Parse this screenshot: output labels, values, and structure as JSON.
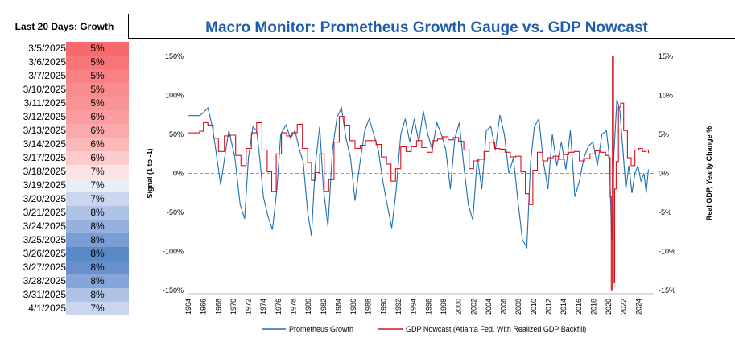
{
  "panel": {
    "header": "Last 20 Days: Growth",
    "rows": [
      {
        "date": "3/5/2025",
        "value": "5%",
        "color": "#f8696b"
      },
      {
        "date": "3/6/2025",
        "value": "5%",
        "color": "#f87577"
      },
      {
        "date": "3/7/2025",
        "value": "5%",
        "color": "#f98183"
      },
      {
        "date": "3/10/2025",
        "value": "5%",
        "color": "#f98c8e"
      },
      {
        "date": "3/11/2025",
        "value": "5%",
        "color": "#f99496"
      },
      {
        "date": "3/12/2025",
        "value": "6%",
        "color": "#fa9ea0"
      },
      {
        "date": "3/13/2025",
        "value": "6%",
        "color": "#fbaaab"
      },
      {
        "date": "3/14/2025",
        "value": "6%",
        "color": "#fcb9ba"
      },
      {
        "date": "3/17/2025",
        "value": "6%",
        "color": "#fccbcc"
      },
      {
        "date": "3/18/2025",
        "value": "7%",
        "color": "#fde3e4"
      },
      {
        "date": "3/19/2025",
        "value": "7%",
        "color": "#e9eef8"
      },
      {
        "date": "3/20/2025",
        "value": "7%",
        "color": "#c9d6ee"
      },
      {
        "date": "3/21/2025",
        "value": "8%",
        "color": "#aec3e6"
      },
      {
        "date": "3/24/2025",
        "value": "8%",
        "color": "#96b1de"
      },
      {
        "date": "3/25/2025",
        "value": "8%",
        "color": "#7a9dd5"
      },
      {
        "date": "3/26/2025",
        "value": "8%",
        "color": "#5a8ac6"
      },
      {
        "date": "3/27/2025",
        "value": "8%",
        "color": "#6891cb"
      },
      {
        "date": "3/28/2025",
        "value": "8%",
        "color": "#86a6d9"
      },
      {
        "date": "3/31/2025",
        "value": "8%",
        "color": "#aec3e6"
      },
      {
        "date": "4/1/2025",
        "value": "7%",
        "color": "#c9d6ee"
      }
    ]
  },
  "chart_data": {
    "type": "line",
    "title": "Macro Monitor: Prometheus Growth Gauge vs. GDP Nowcast",
    "ylabel_left": "Signal (1 to -1)",
    "ylabel_right": "Real GDP, Yearly Change %",
    "ylim_left": [
      -1.5,
      1.5
    ],
    "ylim_right": [
      -15,
      15
    ],
    "yticks_left": [
      "150%",
      "100%",
      "50%",
      "0%",
      "-50%",
      "-100%",
      "-150%"
    ],
    "yticks_right": [
      "15%",
      "10%",
      "5%",
      "0%",
      "-5%",
      "-10%",
      "-15%"
    ],
    "xlim": [
      1964,
      2026
    ],
    "xticks": [
      "1964",
      "1966",
      "1968",
      "1970",
      "1972",
      "1974",
      "1976",
      "1978",
      "1980",
      "1982",
      "1984",
      "1986",
      "1988",
      "1990",
      "1992",
      "1994",
      "1996",
      "1998",
      "2000",
      "2002",
      "2004",
      "2006",
      "2008",
      "2010",
      "2012",
      "2014",
      "2016",
      "2018",
      "2020",
      "2022",
      "2024"
    ],
    "zero_line": "dashed",
    "series": [
      {
        "name": "Prometheus Growth",
        "axis": "left",
        "color": "#1f6fb2",
        "x": [
          1964,
          1965.5,
          1966,
          1966.6,
          1967.2,
          1967.8,
          1968.3,
          1968.9,
          1969.4,
          1970.2,
          1970.9,
          1971.5,
          1972,
          1972.6,
          1973.1,
          1973.5,
          1974,
          1974.6,
          1975.2,
          1975.8,
          1976.3,
          1977,
          1977.6,
          1978.2,
          1978.8,
          1979.3,
          1979.9,
          1980.4,
          1980.9,
          1981.5,
          1982,
          1982.6,
          1983.2,
          1983.8,
          1984.4,
          1985,
          1985.6,
          1986.2,
          1986.8,
          1987.5,
          1988.1,
          1988.7,
          1989.3,
          1989.9,
          1990.5,
          1991.1,
          1991.7,
          1992.3,
          1992.9,
          1993.5,
          1994.1,
          1994.7,
          1995.3,
          1995.9,
          1996.5,
          1997.1,
          1997.7,
          1998.3,
          1998.9,
          1999.5,
          2000.1,
          2000.7,
          2001.3,
          2001.9,
          2002.5,
          2003.1,
          2003.7,
          2004.3,
          2004.9,
          2005.5,
          2006.1,
          2006.7,
          2007.3,
          2007.9,
          2008.5,
          2009.1,
          2009.6,
          2010.1,
          2010.7,
          2011.3,
          2011.9,
          2012.5,
          2013.1,
          2013.7,
          2014.3,
          2014.9,
          2015.5,
          2016.1,
          2016.7,
          2017.3,
          2017.9,
          2018.5,
          2019.1,
          2019.7,
          2020.1,
          2020.4,
          2020.7,
          2021.1,
          2021.5,
          2021.9,
          2022.3,
          2022.7,
          2023.1,
          2023.5,
          2023.9,
          2024.3,
          2024.7,
          2025.0,
          2025.3
        ],
        "y": [
          0.74,
          0.74,
          0.78,
          0.84,
          0.6,
          0.2,
          -0.15,
          0.25,
          0.55,
          0.2,
          -0.4,
          -0.58,
          0.2,
          0.6,
          0.55,
          0.2,
          -0.3,
          -0.55,
          -0.72,
          -0.2,
          0.5,
          0.62,
          0.45,
          0.55,
          0.3,
          0.15,
          -0.5,
          -0.8,
          0.1,
          0.6,
          -0.2,
          -0.68,
          0.3,
          0.72,
          0.84,
          0.45,
          0.2,
          -0.35,
          0.1,
          0.55,
          0.7,
          0.5,
          0.3,
          -0.1,
          -0.4,
          -0.7,
          -0.2,
          0.5,
          0.7,
          0.4,
          0.7,
          0.4,
          0.8,
          0.5,
          0.3,
          0.65,
          0.5,
          0.3,
          -0.2,
          0.45,
          0.65,
          0.1,
          -0.4,
          -0.6,
          0.2,
          -0.2,
          0.55,
          0.6,
          0.3,
          0.75,
          0.5,
          0.0,
          0.2,
          -0.35,
          -0.85,
          -0.95,
          0.15,
          0.6,
          0.7,
          0.15,
          -0.2,
          0.5,
          0.1,
          0.4,
          0.05,
          0.55,
          -0.3,
          -0.1,
          0.2,
          0.35,
          0.4,
          0.1,
          0.5,
          0.55,
          0.2,
          -0.85,
          0.25,
          0.95,
          0.8,
          0.3,
          -0.2,
          0.1,
          -0.25,
          0.0,
          0.1,
          -0.1,
          0.0,
          -0.25,
          0.05
        ]
      },
      {
        "name": "GDP Nowcast (Atlanta Fed, With Realized GDP Backfill)",
        "axis": "right",
        "color": "#d8101c",
        "x": [
          1964,
          1965.5,
          1966,
          1966.6,
          1967.3,
          1968,
          1968.8,
          1969.6,
          1970.3,
          1971,
          1971.7,
          1972.4,
          1973.1,
          1973.8,
          1974.5,
          1975.1,
          1975.7,
          1976.4,
          1977.1,
          1977.8,
          1978.5,
          1979.2,
          1979.9,
          1980.4,
          1980.9,
          1981.5,
          1982.1,
          1982.7,
          1983.4,
          1984.1,
          1984.8,
          1985.5,
          1986.2,
          1986.9,
          1987.6,
          1988.3,
          1989,
          1989.7,
          1990.4,
          1991,
          1991.6,
          1992.3,
          1993,
          1993.7,
          1994.4,
          1995.1,
          1995.8,
          1996.5,
          1997.2,
          1997.9,
          1998.6,
          1999.3,
          2000,
          2000.7,
          2001.4,
          2002,
          2002.7,
          2003.4,
          2004.1,
          2004.8,
          2005.5,
          2006.2,
          2006.9,
          2007.6,
          2008.3,
          2008.9,
          2009.4,
          2009.9,
          2010.5,
          2011.2,
          2011.9,
          2012.6,
          2013.3,
          2014,
          2014.7,
          2015.4,
          2016.1,
          2016.8,
          2017.5,
          2018.2,
          2018.9,
          2019.6,
          2020.0,
          2020.2,
          2020.35,
          2020.5,
          2020.65,
          2020.8,
          2021.0,
          2021.3,
          2021.6,
          2022.0,
          2022.5,
          2023.0,
          2023.5,
          2024.0,
          2024.5,
          2025.0,
          2025.3
        ],
        "y": [
          5.2,
          5.4,
          6.5,
          6.2,
          4.5,
          2.8,
          4.8,
          4.9,
          2.3,
          1.0,
          3.2,
          5.2,
          6.5,
          3.0,
          0.2,
          -2.3,
          2.5,
          5.2,
          4.8,
          5.2,
          6.3,
          3.2,
          1.4,
          -0.9,
          0.1,
          2.5,
          -2.3,
          -0.8,
          4.0,
          7.3,
          6.2,
          4.2,
          3.2,
          3.6,
          4.2,
          4.2,
          3.7,
          2.1,
          1.2,
          -1.0,
          0.6,
          3.4,
          2.8,
          3.4,
          4.2,
          3.3,
          2.7,
          4.2,
          4.4,
          4.7,
          4.3,
          4.6,
          4.1,
          3.0,
          0.6,
          1.6,
          1.8,
          2.8,
          4.0,
          3.2,
          3.1,
          2.7,
          2.1,
          2.2,
          0.2,
          -2.6,
          -4.0,
          0.4,
          2.7,
          1.6,
          2.0,
          2.2,
          1.8,
          2.4,
          2.7,
          2.8,
          1.6,
          1.9,
          2.5,
          2.9,
          2.7,
          2.3,
          2.0,
          -3.0,
          -15.0,
          15.0,
          -14.0,
          -2.0,
          1.5,
          8.5,
          9.0,
          5.5,
          2.0,
          1.0,
          3.0,
          3.2,
          2.8,
          3.0,
          2.6
        ]
      }
    ]
  }
}
